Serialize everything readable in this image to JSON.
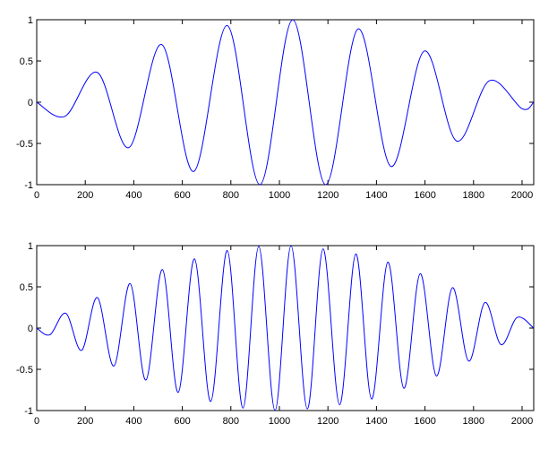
{
  "figure": {
    "background": "#ffffff"
  },
  "chart_data": [
    {
      "type": "line",
      "title": "",
      "xlabel": "",
      "ylabel": "",
      "xlim": [
        0,
        2048
      ],
      "ylim": [
        -1,
        1
      ],
      "grid": false,
      "legend": "none",
      "x_ticks": [
        0,
        200,
        400,
        600,
        800,
        1000,
        1200,
        1400,
        1600,
        1800,
        2000
      ],
      "x_tick_labels": [
        "0",
        "200",
        "400",
        "600",
        "800",
        "1000",
        "1200",
        "1400",
        "1600",
        "1800",
        "2000"
      ],
      "y_ticks": [
        1,
        0.5,
        0,
        -0.5,
        -1
      ],
      "y_tick_labels": [
        "1",
        "0.5",
        "0",
        "-0.5",
        "-1"
      ],
      "series": [
        {
          "color": "#0000ff",
          "x": [
            0,
            117,
            250,
            380,
            515,
            647,
            785,
            920,
            1055,
            1190,
            1325,
            1460,
            1597,
            1730,
            1865,
            2000,
            2048
          ],
          "y": [
            0,
            -0.17,
            0.36,
            -0.55,
            0.7,
            -0.84,
            0.93,
            -1.0,
            1.0,
            -1.0,
            0.89,
            -0.78,
            0.62,
            -0.47,
            0.26,
            -0.08,
            0
          ]
        }
      ]
    },
    {
      "type": "line",
      "title": "",
      "xlabel": "",
      "ylabel": "",
      "xlim": [
        0,
        2048
      ],
      "ylim": [
        -1,
        1
      ],
      "grid": false,
      "legend": "none",
      "x_ticks": [
        0,
        200,
        400,
        600,
        800,
        1000,
        1200,
        1400,
        1600,
        1800,
        2000
      ],
      "x_tick_labels": [
        "0",
        "200",
        "400",
        "600",
        "800",
        "1000",
        "1200",
        "1400",
        "1600",
        "1800",
        "2000"
      ],
      "y_ticks": [
        1,
        0.5,
        0,
        -0.5,
        -1
      ],
      "y_tick_labels": [
        "1",
        "0.5",
        "0",
        "-0.5",
        "-1"
      ],
      "series": [
        {
          "color": "#0000ff",
          "x": [
            0,
            55,
            120,
            185,
            250,
            318,
            385,
            450,
            518,
            583,
            650,
            717,
            785,
            850,
            915,
            982,
            1048,
            1115,
            1180,
            1248,
            1315,
            1380,
            1447,
            1513,
            1580,
            1647,
            1713,
            1780,
            1847,
            1913,
            1980,
            2048
          ],
          "y": [
            0,
            -0.08,
            0.18,
            -0.27,
            0.37,
            -0.46,
            0.54,
            -0.63,
            0.71,
            -0.78,
            0.84,
            -0.89,
            0.94,
            -0.97,
            0.99,
            -1.0,
            1.0,
            -0.98,
            0.96,
            -0.93,
            0.9,
            -0.86,
            0.8,
            -0.73,
            0.66,
            -0.58,
            0.49,
            -0.4,
            0.31,
            -0.2,
            0.13,
            0
          ]
        }
      ]
    }
  ]
}
